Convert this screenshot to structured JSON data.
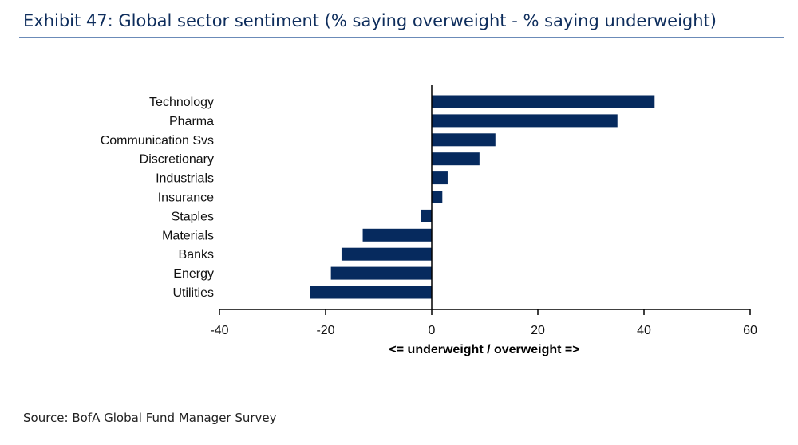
{
  "header": {
    "title": "Exhibit 47: Global sector sentiment (% saying overweight - % saying underweight)"
  },
  "footer": {
    "source": "Source: BofA Global Fund Manager Survey"
  },
  "colors": {
    "bar": "#062a5e",
    "title": "#0e2d5c",
    "rule": "#6b8bb8",
    "axis": "#000000"
  },
  "chart_data": {
    "type": "bar",
    "orientation": "horizontal",
    "categories": [
      "Technology",
      "Pharma",
      "Communication Svs",
      "Discretionary",
      "Industrials",
      "Insurance",
      "Staples",
      "Materials",
      "Banks",
      "Energy",
      "Utilities"
    ],
    "values": [
      42,
      35,
      12,
      9,
      3,
      2,
      -2,
      -13,
      -17,
      -19,
      -23
    ],
    "xlabel": "<= underweight / overweight =>",
    "ylabel": "",
    "xlim": [
      -40,
      60
    ],
    "xticks": [
      -40,
      -20,
      0,
      20,
      40,
      60
    ],
    "grid": false,
    "legend": "none"
  }
}
